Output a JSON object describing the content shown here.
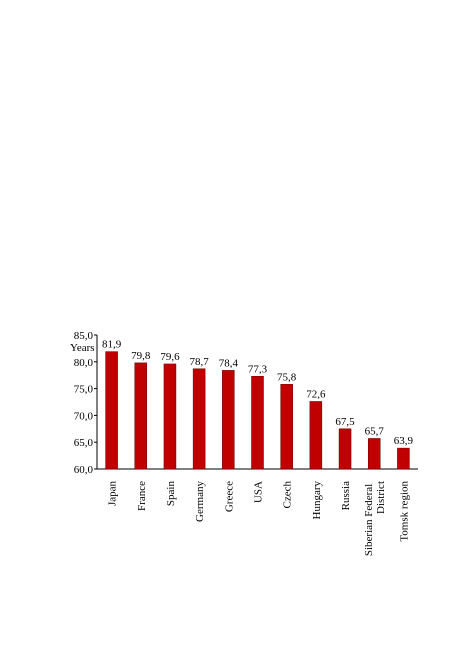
{
  "chart_data": {
    "type": "bar",
    "y_label": "Years",
    "categories": [
      "Japan",
      "France",
      "Spain",
      "Germany",
      "Greece",
      "USA",
      "Czech",
      "Hungary",
      "Russia",
      "Siberian Federal District",
      "Tomsk region"
    ],
    "values": [
      81.9,
      79.8,
      79.6,
      78.7,
      78.4,
      77.3,
      75.8,
      72.6,
      67.5,
      65.7,
      63.9
    ],
    "value_labels": [
      "81,9",
      "79,8",
      "79,6",
      "78,7",
      "78,4",
      "77,3",
      "75,8",
      "72,6",
      "67,5",
      "65,7",
      "63,9"
    ],
    "color": "#c00000",
    "ylim": [
      60,
      85
    ],
    "yticks": [
      {
        "value": 60,
        "label": "60,0"
      },
      {
        "value": 65,
        "label": "65,0"
      },
      {
        "value": 70,
        "label": "70,0"
      },
      {
        "value": 75,
        "label": "75,0"
      },
      {
        "value": 80,
        "label": "80,0"
      },
      {
        "value": 85,
        "label": "85,0"
      }
    ],
    "grid": false
  }
}
